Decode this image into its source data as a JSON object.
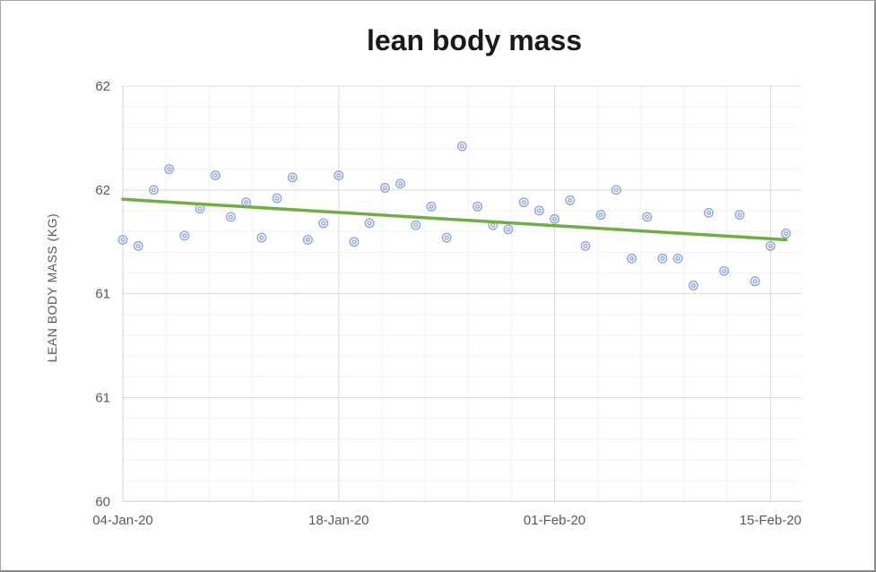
{
  "chart_data": {
    "type": "scatter",
    "title": "lean body mass",
    "ylabel": "LEAN BODY MASS (KG)",
    "xlabel": "",
    "legend": "none",
    "grid": {
      "major": true,
      "minor": true
    },
    "x_dates": [
      "04-Jan-20",
      "05-Jan-20",
      "06-Jan-20",
      "07-Jan-20",
      "08-Jan-20",
      "09-Jan-20",
      "10-Jan-20",
      "11-Jan-20",
      "12-Jan-20",
      "13-Jan-20",
      "14-Jan-20",
      "15-Jan-20",
      "16-Jan-20",
      "17-Jan-20",
      "18-Jan-20",
      "19-Jan-20",
      "20-Jan-20",
      "21-Jan-20",
      "22-Jan-20",
      "23-Jan-20",
      "24-Jan-20",
      "25-Jan-20",
      "26-Jan-20",
      "27-Jan-20",
      "28-Jan-20",
      "29-Jan-20",
      "30-Jan-20",
      "31-Jan-20",
      "01-Feb-20",
      "02-Feb-20",
      "03-Feb-20",
      "04-Feb-20",
      "05-Feb-20",
      "06-Feb-20",
      "07-Feb-20",
      "08-Feb-20",
      "09-Feb-20",
      "10-Feb-20",
      "11-Feb-20",
      "12-Feb-20",
      "13-Feb-20",
      "14-Feb-20",
      "15-Feb-20",
      "16-Feb-20"
    ],
    "values": [
      61.26,
      61.23,
      61.5,
      61.6,
      61.28,
      61.41,
      61.57,
      61.37,
      61.44,
      61.27,
      61.46,
      61.56,
      61.26,
      61.34,
      61.57,
      61.25,
      61.34,
      61.51,
      61.53,
      61.33,
      61.42,
      61.27,
      61.71,
      61.42,
      61.33,
      61.31,
      61.44,
      61.4,
      61.36,
      61.45,
      61.23,
      61.38,
      61.5,
      61.17,
      61.37,
      61.17,
      61.17,
      61.04,
      61.39,
      61.11,
      61.38,
      61.06,
      61.23,
      61.29
    ],
    "trendline": {
      "start_date": "04-Jan-20",
      "start_value": 61.455,
      "end_date": "16-Feb-20",
      "end_value": 61.26
    },
    "x_axis": {
      "tick_labels": [
        "04-Jan-20",
        "18-Jan-20",
        "01-Feb-20",
        "15-Feb-20"
      ],
      "tick_days": [
        0,
        14,
        28,
        42
      ],
      "minor_unit_days": 2.8,
      "range_days": [
        0,
        44
      ]
    },
    "y_axis": {
      "min": 60,
      "max": 62,
      "major_unit": 0.5,
      "minor_unit": 0.1,
      "tick_values": [
        62,
        61.5,
        61,
        60.5,
        60
      ],
      "tick_labels": [
        "62",
        "62",
        "61",
        "61",
        "60"
      ]
    },
    "colors": {
      "marker": "#8faadc",
      "trendline": "#70ad47",
      "grid_major": "#d9d9d9",
      "grid_minor": "#f2f2f2",
      "axis_line": "#d0d0d0",
      "tick_text": "#595959",
      "title_text": "#1a1a1a"
    }
  }
}
